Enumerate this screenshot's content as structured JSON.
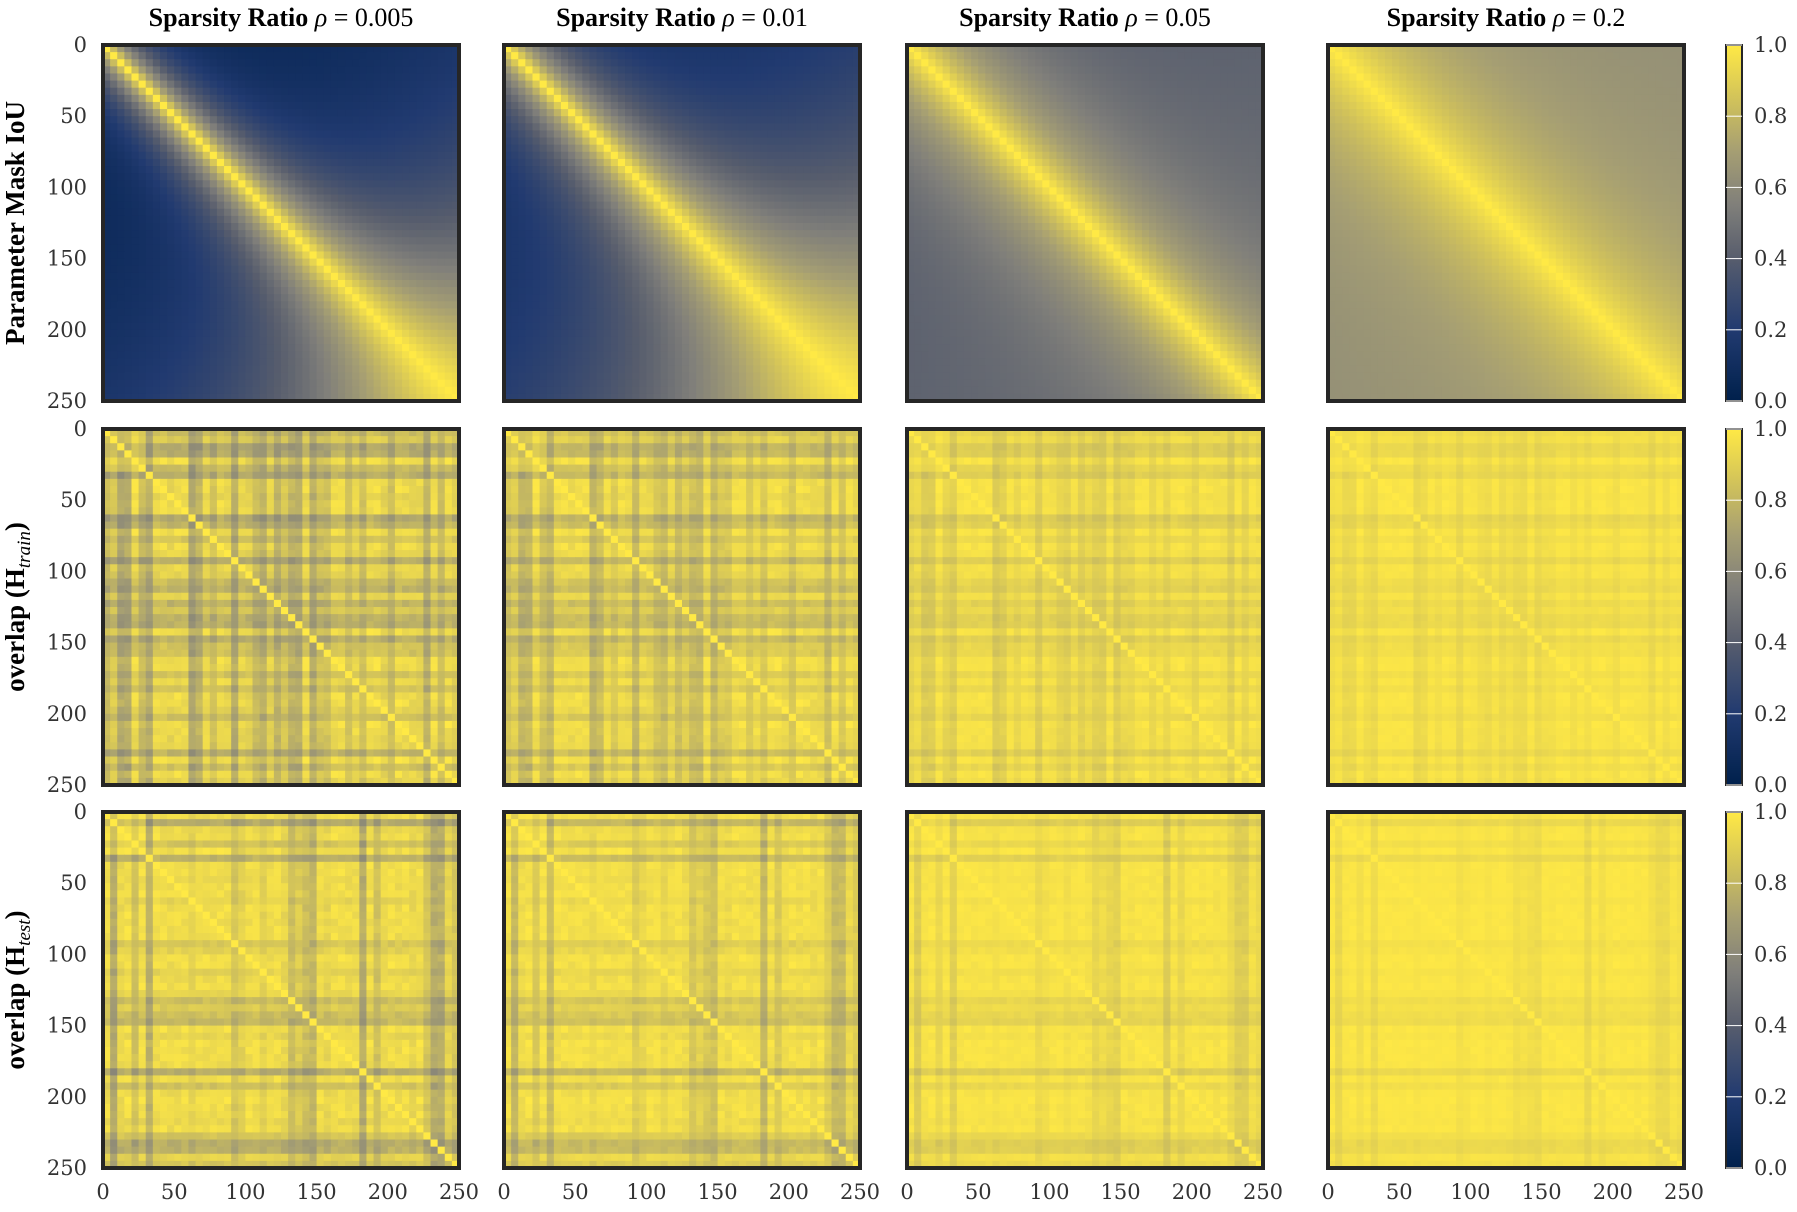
{
  "figure": {
    "column_titles": [
      {
        "text": "Sparsity Ratio",
        "symbol": "ρ",
        "value": " = 0.005"
      },
      {
        "text": "Sparsity Ratio",
        "symbol": "ρ",
        "value": " = 0.01"
      },
      {
        "text": "Sparsity Ratio",
        "symbol": "ρ",
        "value": " = 0.05"
      },
      {
        "text": "Sparsity Ratio",
        "symbol": "ρ",
        "value": " = 0.2"
      }
    ],
    "row_labels": [
      {
        "main": "Parameter Mask IoU",
        "base": "",
        "sub": ""
      },
      {
        "main": "overlap (",
        "base": "H",
        "sub": "train",
        "close": ")"
      },
      {
        "main": "overlap (",
        "base": "H",
        "sub": "test",
        "close": ")"
      }
    ],
    "colormap": {
      "low": "#00204c",
      "mid": "#7c7b78",
      "high": "#ffe945",
      "name": "cividis"
    }
  },
  "chart_data": {
    "type": "heatmap",
    "layout": "3 rows x 4 columns grid of heatmaps with one colorbar per row",
    "x_range": [
      0,
      250
    ],
    "y_range": [
      0,
      250
    ],
    "y_inverted": true,
    "x_ticks": [
      0,
      50,
      100,
      150,
      200,
      250
    ],
    "y_ticks": [
      0,
      50,
      100,
      150,
      200,
      250
    ],
    "grid": false,
    "colorbar": {
      "range": [
        0.0,
        1.0
      ],
      "ticks": [
        "0.0",
        "0.2",
        "0.4",
        "0.6",
        "0.8",
        "1.0"
      ]
    },
    "columns": [
      "Sparsity Ratio ρ = 0.005",
      "Sparsity Ratio ρ = 0.01",
      "Sparsity Ratio ρ = 0.05",
      "Sparsity Ratio ρ = 0.2"
    ],
    "rows": [
      "Parameter Mask IoU",
      "overlap (H_train)",
      "overlap (H_test)"
    ],
    "panels": [
      {
        "row": 0,
        "col": 0,
        "diagonal": 1.0,
        "far_off_diagonal_min": 0.05,
        "pattern": "decay from diagonal, higher similarity in lower-right block"
      },
      {
        "row": 0,
        "col": 1,
        "diagonal": 1.0,
        "far_off_diagonal_min": 0.1,
        "pattern": "decay from diagonal, higher similarity in lower-right block"
      },
      {
        "row": 0,
        "col": 2,
        "diagonal": 1.0,
        "far_off_diagonal_min": 0.38,
        "pattern": "smooth decay from diagonal"
      },
      {
        "row": 0,
        "col": 3,
        "diagonal": 1.0,
        "far_off_diagonal_min": 0.6,
        "pattern": "smooth decay from diagonal"
      },
      {
        "row": 1,
        "col": 0,
        "diagonal": 1.0,
        "range": [
          0.6,
          1.0
        ],
        "pattern": "banded checkerboard"
      },
      {
        "row": 1,
        "col": 1,
        "diagonal": 1.0,
        "range": [
          0.68,
          1.0
        ],
        "pattern": "banded checkerboard"
      },
      {
        "row": 1,
        "col": 2,
        "diagonal": 1.0,
        "range": [
          0.8,
          1.0
        ],
        "pattern": "faint banding"
      },
      {
        "row": 1,
        "col": 3,
        "diagonal": 1.0,
        "range": [
          0.88,
          1.0
        ],
        "pattern": "faint banding"
      },
      {
        "row": 2,
        "col": 0,
        "diagonal": 1.0,
        "range": [
          0.6,
          1.0
        ],
        "pattern": "banded checkerboard"
      },
      {
        "row": 2,
        "col": 1,
        "diagonal": 1.0,
        "range": [
          0.68,
          1.0
        ],
        "pattern": "banded checkerboard"
      },
      {
        "row": 2,
        "col": 2,
        "diagonal": 1.0,
        "range": [
          0.8,
          1.0
        ],
        "pattern": "faint banding"
      },
      {
        "row": 2,
        "col": 3,
        "diagonal": 1.0,
        "range": [
          0.88,
          1.0
        ],
        "pattern": "faint banding"
      }
    ]
  }
}
